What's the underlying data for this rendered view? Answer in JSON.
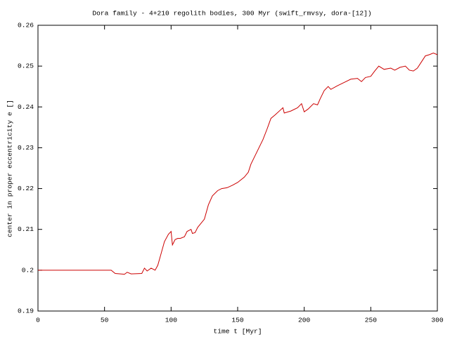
{
  "chart_data": {
    "type": "line",
    "title": "Dora family - 4+210 regolith bodies, 300 Myr (swift_rmvsy, dora-[12])",
    "xlabel": "time t [Myr]",
    "ylabel": "center in proper eccentricity e []",
    "color": "#cc0000",
    "x": [
      0,
      10,
      20,
      30,
      40,
      50,
      52,
      55,
      58,
      65,
      67,
      70,
      78,
      80,
      82,
      85,
      88,
      90,
      92,
      95,
      98,
      100,
      101,
      103,
      105,
      107,
      110,
      112,
      115,
      116,
      118,
      120,
      125,
      128,
      131,
      135,
      138,
      142,
      146,
      150,
      155,
      158,
      160,
      163,
      166,
      169,
      172,
      175,
      178,
      182,
      184,
      185,
      190,
      195,
      198,
      200,
      203,
      207,
      210,
      212,
      215,
      218,
      220,
      225,
      230,
      235,
      240,
      243,
      246,
      250,
      253,
      256,
      260,
      265,
      268,
      272,
      276,
      279,
      282,
      285,
      288,
      291,
      294,
      297,
      300
    ],
    "values": [
      0.2,
      0.2,
      0.2,
      0.2,
      0.2,
      0.2,
      0.2,
      0.2,
      0.1992,
      0.199,
      0.1995,
      0.1991,
      0.1992,
      0.2005,
      0.1998,
      0.2005,
      0.2,
      0.2012,
      0.2035,
      0.207,
      0.2088,
      0.2095,
      0.2062,
      0.2075,
      0.2078,
      0.2078,
      0.2082,
      0.2095,
      0.21,
      0.209,
      0.2092,
      0.2105,
      0.2125,
      0.216,
      0.2182,
      0.2195,
      0.22,
      0.2202,
      0.2208,
      0.2215,
      0.2228,
      0.224,
      0.226,
      0.228,
      0.23,
      0.232,
      0.2345,
      0.2372,
      0.238,
      0.2392,
      0.2398,
      0.2385,
      0.239,
      0.2398,
      0.2408,
      0.2388,
      0.2395,
      0.2408,
      0.2405,
      0.242,
      0.244,
      0.245,
      0.2443,
      0.2452,
      0.246,
      0.2468,
      0.247,
      0.2462,
      0.2472,
      0.2475,
      0.2488,
      0.25,
      0.2492,
      0.2495,
      0.249,
      0.2497,
      0.25,
      0.249,
      0.2488,
      0.2495,
      0.251,
      0.2525,
      0.2528,
      0.2532,
      0.2528
    ],
    "xlim": [
      0,
      300
    ],
    "xticks": [
      0,
      50,
      100,
      150,
      200,
      250,
      300
    ],
    "ylim": [
      0.19,
      0.26
    ],
    "yticks": [
      0.19,
      0.2,
      0.21,
      0.22,
      0.23,
      0.24,
      0.25,
      0.26
    ]
  }
}
